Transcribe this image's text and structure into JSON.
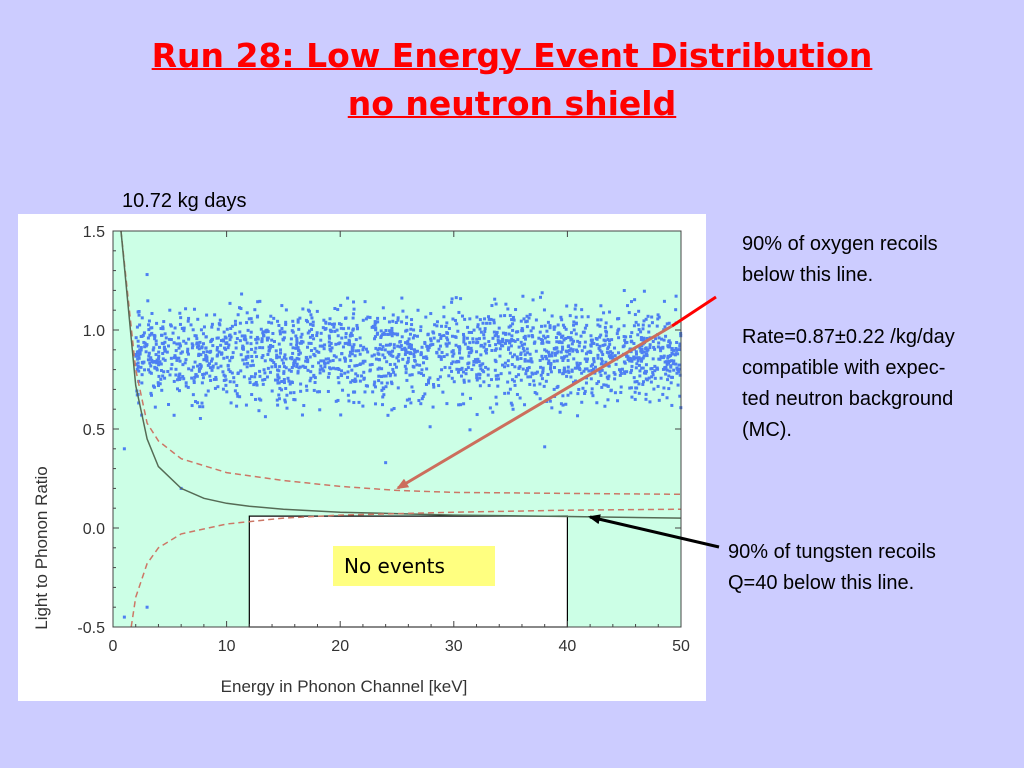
{
  "title": {
    "line1": "Run 28: Low Energy Event Distribution",
    "line2": "no neutron shield"
  },
  "exposure_label": "10.72 kg days",
  "annotations": {
    "oxygen": {
      "lines": [
        "90% of oxygen recoils",
        "below this line.",
        "",
        "Rate=0.87±0.22 /kg/day",
        "compatible with expec-",
        "ted neutron background",
        "(MC)."
      ]
    },
    "tungsten": {
      "lines": [
        "90% of tungsten recoils",
        "Q=40 below this line."
      ]
    },
    "no_events": "No events"
  },
  "colors": {
    "background": "#ccccff",
    "title": "#ff0000",
    "plot_fill": "#ccffe6",
    "points": "#4d7ff2",
    "oxygen_arrow": "#cc6e5c",
    "oxygen_pointer_line": "#ff0000",
    "tungsten_arrow": "#000000",
    "dashed_lines": "#cc7766",
    "tungsten_curve": "#556b55",
    "no_events_box": "#ffff80"
  },
  "chart_data": {
    "type": "scatter",
    "xlabel": "Energy in Phonon Channel [keV]",
    "ylabel": "Light to Phonon Ratio",
    "xlim": [
      0,
      50
    ],
    "ylim": [
      -0.5,
      1.5
    ],
    "x_ticks": [
      "0",
      "10",
      "20",
      "30",
      "40",
      "50"
    ],
    "y_ticks": [
      "-0.5",
      "0.0",
      "0.5",
      "1.0",
      "1.5"
    ],
    "grid": false,
    "acceptance_region": {
      "x": [
        12,
        40
      ],
      "y_top": 0.06,
      "y_bottom": -0.5,
      "label": "No events"
    },
    "events": {
      "approx_count": 2000,
      "electron_band_center": 0.88,
      "electron_band_sigma": 0.17,
      "energy_range": [
        2,
        50
      ],
      "sample_points": [
        {
          "x": 3,
          "y": 1.28
        },
        {
          "x": 5,
          "y": 1.1
        },
        {
          "x": 8,
          "y": 0.85
        },
        {
          "x": 15,
          "y": 0.95
        },
        {
          "x": 22,
          "y": 0.9
        },
        {
          "x": 30,
          "y": 0.88
        },
        {
          "x": 38,
          "y": 0.9
        },
        {
          "x": 45,
          "y": 0.92
        },
        {
          "x": 49,
          "y": 0.92
        },
        {
          "x": 6,
          "y": 0.2
        },
        {
          "x": 24,
          "y": 0.33
        },
        {
          "x": 38,
          "y": 0.41
        },
        {
          "x": 3,
          "y": -0.4
        },
        {
          "x": 1,
          "y": 0.4
        },
        {
          "x": 1,
          "y": -0.45
        }
      ]
    },
    "curves": [
      {
        "name": "90% of oxygen recoils",
        "style": "dashed",
        "points": [
          [
            0.7,
            1.5
          ],
          [
            2,
            0.8
          ],
          [
            3,
            0.53
          ],
          [
            4,
            0.44
          ],
          [
            6,
            0.35
          ],
          [
            10,
            0.28
          ],
          [
            15,
            0.24
          ],
          [
            20,
            0.21
          ],
          [
            25,
            0.19
          ],
          [
            30,
            0.18
          ],
          [
            40,
            0.175
          ],
          [
            50,
            0.17
          ]
        ]
      },
      {
        "name": "90% of tungsten recoils Q=40",
        "style": "solid",
        "points": [
          [
            0.7,
            1.5
          ],
          [
            2,
            0.72
          ],
          [
            3,
            0.45
          ],
          [
            4,
            0.31
          ],
          [
            6,
            0.2
          ],
          [
            8,
            0.15
          ],
          [
            10,
            0.125
          ],
          [
            12,
            0.11
          ],
          [
            15,
            0.095
          ],
          [
            20,
            0.08
          ],
          [
            30,
            0.065
          ],
          [
            40,
            0.058
          ],
          [
            50,
            0.05
          ]
        ]
      },
      {
        "name": "lower band",
        "style": "dashed",
        "points": [
          [
            1.6,
            -0.5
          ],
          [
            2,
            -0.35
          ],
          [
            3,
            -0.18
          ],
          [
            4,
            -0.1
          ],
          [
            6,
            -0.03
          ],
          [
            10,
            0.02
          ],
          [
            15,
            0.05
          ],
          [
            20,
            0.065
          ],
          [
            30,
            0.08
          ],
          [
            40,
            0.09
          ],
          [
            50,
            0.095
          ]
        ]
      }
    ]
  }
}
